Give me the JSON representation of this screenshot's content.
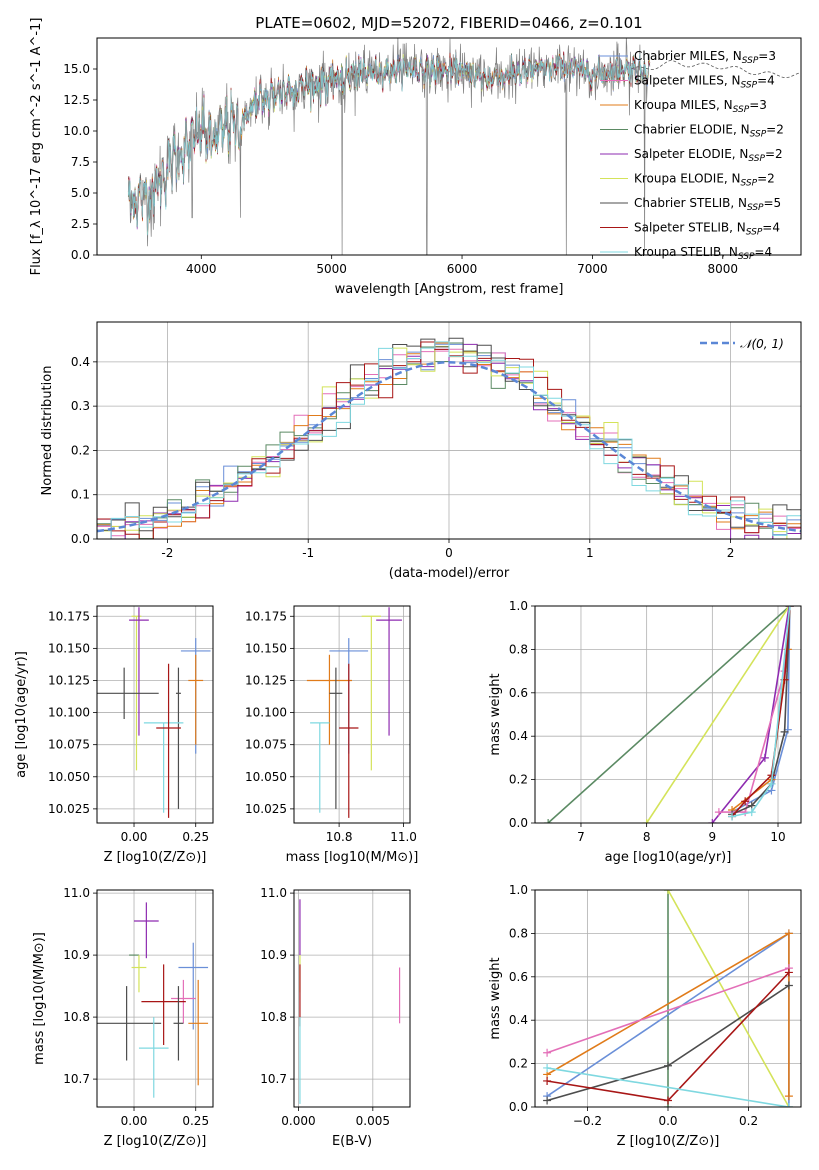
{
  "figure": {
    "title": "PLATE=0602, MJD=52072, FIBERID=0466, z=0.101"
  },
  "models": [
    {
      "name": "Chabrier MILES, N_SSP=3",
      "imf": "Chabrier",
      "lib": "MILES",
      "nssp": "3",
      "color": "#6a8fd8"
    },
    {
      "name": "Salpeter MILES, N_SSP=4",
      "imf": "Salpeter",
      "lib": "MILES",
      "nssp": "4",
      "color": "#e36fb8"
    },
    {
      "name": "Kroupa MILES, N_SSP=3",
      "imf": "Kroupa",
      "lib": "MILES",
      "nssp": "3",
      "color": "#e07b1a"
    },
    {
      "name": "Chabrier ELODIE, N_SSP=2",
      "imf": "Chabrier",
      "lib": "ELODIE",
      "nssp": "2",
      "color": "#5b8a63"
    },
    {
      "name": "Salpeter ELODIE, N_SSP=2",
      "imf": "Salpeter",
      "lib": "ELODIE",
      "nssp": "2",
      "color": "#8e2bb0"
    },
    {
      "name": "Kroupa ELODIE, N_SSP=2",
      "imf": "Kroupa",
      "lib": "ELODIE",
      "nssp": "2",
      "color": "#d4e35a"
    },
    {
      "name": "Chabrier STELIB, N_SSP=5",
      "imf": "Chabrier",
      "lib": "STELIB",
      "nssp": "5",
      "color": "#4d4d4d"
    },
    {
      "name": "Salpeter STELIB, N_SSP=4",
      "imf": "Salpeter",
      "lib": "STELIB",
      "nssp": "4",
      "color": "#a81616"
    },
    {
      "name": "Kroupa STELIB, N_SSP=4",
      "imf": "Kroupa",
      "lib": "STELIB",
      "nssp": "4",
      "color": "#7fd8e0"
    }
  ],
  "chart_data": [
    {
      "id": "spectrum",
      "type": "line",
      "title": "PLATE=0602, MJD=52072, FIBERID=0466, z=0.101",
      "xlabel": "wavelength [Angstrom, rest frame]",
      "ylabel": "Flux [f_λ 10^-17 erg cm^-2 s^-1 A^-1]",
      "xlim": [
        3200,
        8600
      ],
      "ylim": [
        0,
        17.5
      ],
      "xticks": [
        4000,
        5000,
        6000,
        7000,
        8000
      ],
      "yticks": [
        0.0,
        2.5,
        5.0,
        7.5,
        10.0,
        12.5,
        15.0
      ],
      "data_color": "#808080",
      "continuum": {
        "x": [
          3450,
          3600,
          3700,
          3800,
          3900,
          4000,
          4100,
          4200,
          4300,
          4400,
          4600,
          4800,
          5000,
          5200,
          5400,
          5600,
          5800,
          6000,
          6200,
          6400,
          6600,
          6800,
          7000,
          7200,
          7400,
          7600,
          7800,
          8000,
          8200,
          8400
        ],
        "y": [
          4.4,
          4.8,
          6.2,
          7.9,
          8.8,
          10.1,
          9.1,
          10.6,
          10.4,
          12.1,
          13.2,
          13.6,
          14.0,
          14.6,
          14.8,
          15.0,
          14.9,
          14.8,
          14.2,
          14.6,
          15.0,
          15.2,
          14.6,
          14.9,
          15.0,
          15.5,
          15.3,
          15.2,
          14.8,
          14.5
        ]
      }
    },
    {
      "id": "residuals",
      "type": "line",
      "xlabel": "(data-model)/error",
      "ylabel": "Normed distribution",
      "xlim": [
        -2.5,
        2.5
      ],
      "ylim": [
        0,
        0.49
      ],
      "xticks": [
        -2,
        -1,
        0,
        1,
        2
      ],
      "yticks": [
        0.0,
        0.1,
        0.2,
        0.3,
        0.4
      ],
      "reference": {
        "name": "𝒩(0, 1)",
        "mean": 0,
        "sigma": 1,
        "color": "#5b87d6"
      }
    },
    {
      "id": "age_vs_Z",
      "type": "scatter",
      "xlabel": "Z [log10(Z/Z⊙)]",
      "ylabel": "age [log10(age/yr)]",
      "xlim": [
        -0.15,
        0.32
      ],
      "ylim": [
        10.014,
        10.183
      ],
      "xticks": [
        0.0,
        0.25
      ],
      "xticklabels": [
        "0.00",
        "0.25"
      ],
      "yticks": [
        10.025,
        10.05,
        10.075,
        10.1,
        10.125,
        10.15,
        10.175
      ],
      "yticklabels": [
        "10.025",
        "10.050",
        "10.075",
        "10.100",
        "10.125",
        "10.150",
        "10.175"
      ],
      "points": [
        {
          "model": 0,
          "x": 0.25,
          "xerr": 0.06,
          "y": 10.148,
          "yerr": [
            0.08,
            0.01
          ]
        },
        {
          "model": 2,
          "x": 0.25,
          "xerr": 0.03,
          "y": 10.125,
          "yerr": [
            0.05,
            0.02
          ]
        },
        {
          "model": 5,
          "x": 0.01,
          "xerr": 0.02,
          "y": 10.175,
          "yerr": [
            0.12,
            0.0
          ]
        },
        {
          "model": 4,
          "x": 0.02,
          "xerr": 0.04,
          "y": 10.172,
          "yerr": [
            0.09,
            0.01
          ]
        },
        {
          "model": 6,
          "x": -0.04,
          "xerr": 0.14,
          "y": 10.115,
          "yerr": [
            0.02,
            0.02
          ]
        },
        {
          "model": 6,
          "x": 0.18,
          "xerr": 0.01,
          "y": 10.115,
          "yerr": [
            0.09,
            0.02
          ]
        },
        {
          "model": 8,
          "x": 0.12,
          "xerr": 0.08,
          "y": 10.092,
          "yerr": [
            0.07,
            0.0
          ]
        },
        {
          "model": 7,
          "x": 0.14,
          "xerr": 0.05,
          "y": 10.088,
          "yerr": [
            0.07,
            0.05
          ]
        }
      ]
    },
    {
      "id": "age_vs_mass",
      "type": "scatter",
      "xlabel": "mass [log10(M/M⊙)]",
      "ylabel": "",
      "xlim": [
        10.66,
        11.02
      ],
      "ylim": [
        10.014,
        10.183
      ],
      "xticks": [
        10.8,
        11.0
      ],
      "xticklabels": [
        "10.8",
        "11.0"
      ],
      "yticks": [
        10.025,
        10.05,
        10.075,
        10.1,
        10.125,
        10.15,
        10.175
      ],
      "yticklabels": [
        "10.025",
        "10.050",
        "10.075",
        "10.100",
        "10.125",
        "10.150",
        "10.175"
      ],
      "points": [
        {
          "model": 0,
          "x": 10.83,
          "xerr": 0.06,
          "y": 10.148,
          "yerr": [
            0.08,
            0.01
          ]
        },
        {
          "model": 2,
          "x": 10.77,
          "xerr": 0.07,
          "y": 10.125,
          "yerr": [
            0.05,
            0.02
          ]
        },
        {
          "model": 5,
          "x": 10.9,
          "xerr": 0.03,
          "y": 10.175,
          "yerr": [
            0.12,
            0.0
          ]
        },
        {
          "model": 4,
          "x": 10.955,
          "xerr": 0.04,
          "y": 10.172,
          "yerr": [
            0.09,
            0.01
          ]
        },
        {
          "model": 6,
          "x": 10.79,
          "xerr": 0.02,
          "y": 10.115,
          "yerr": [
            0.09,
            0.02
          ]
        },
        {
          "model": 8,
          "x": 10.74,
          "xerr": 0.03,
          "y": 10.092,
          "yerr": [
            0.07,
            0.0
          ]
        },
        {
          "model": 7,
          "x": 10.83,
          "xerr": 0.03,
          "y": 10.088,
          "yerr": [
            0.07,
            0.05
          ]
        }
      ]
    },
    {
      "id": "cum_mass_vs_age",
      "type": "line",
      "xlabel": "age  [log10(age/yr)]",
      "ylabel": "mass weight",
      "xlim": [
        6.3,
        10.35
      ],
      "ylim": [
        0,
        1
      ],
      "xticks": [
        7,
        8,
        9,
        10
      ],
      "yticks": [
        0.0,
        0.2,
        0.4,
        0.6,
        0.8,
        1.0
      ],
      "yticklabels": [
        "0.0",
        "0.2",
        "0.4",
        "0.6",
        "0.8",
        "1.0"
      ],
      "series": [
        {
          "model": 3,
          "x": [
            6.5,
            10.18
          ],
          "y": [
            0.0,
            1.0
          ]
        },
        {
          "model": 5,
          "x": [
            8.0,
            10.17
          ],
          "y": [
            0.0,
            1.0
          ]
        },
        {
          "model": 4,
          "x": [
            9.0,
            9.8,
            10.17
          ],
          "y": [
            0.0,
            0.3,
            1.0
          ]
        },
        {
          "model": 0,
          "x": [
            9.3,
            9.9,
            10.15,
            10.18
          ],
          "y": [
            0.05,
            0.15,
            0.43,
            1.0
          ]
        },
        {
          "model": 2,
          "x": [
            9.3,
            9.9,
            10.15,
            10.18
          ],
          "y": [
            0.06,
            0.2,
            0.8,
            1.0
          ]
        },
        {
          "model": 1,
          "x": [
            9.1,
            9.5,
            10.1,
            10.18
          ],
          "y": [
            0.05,
            0.05,
            0.7,
            1.0
          ]
        },
        {
          "model": 6,
          "x": [
            9.3,
            9.6,
            9.9,
            10.1,
            10.18
          ],
          "y": [
            0.04,
            0.08,
            0.18,
            0.42,
            1.0
          ]
        },
        {
          "model": 7,
          "x": [
            9.3,
            9.5,
            9.9,
            10.1,
            10.18
          ],
          "y": [
            0.03,
            0.1,
            0.22,
            0.66,
            1.0
          ]
        },
        {
          "model": 8,
          "x": [
            9.3,
            9.6,
            9.9,
            10.18
          ],
          "y": [
            0.03,
            0.05,
            0.18,
            1.0
          ]
        }
      ]
    },
    {
      "id": "mass_vs_Z",
      "type": "scatter",
      "xlabel": "Z [log10(Z/Z⊙)]",
      "ylabel": "mass [log10(M/M⊙)]",
      "xlim": [
        -0.15,
        0.32
      ],
      "ylim": [
        10.655,
        11.005
      ],
      "xticks": [
        0.0,
        0.25
      ],
      "xticklabels": [
        "0.00",
        "0.25"
      ],
      "yticks": [
        10.7,
        10.8,
        10.9,
        11.0
      ],
      "yticklabels": [
        "10.7",
        "10.8",
        "10.9",
        "11.0"
      ],
      "points": [
        {
          "model": 0,
          "x": 0.24,
          "xerr": 0.06,
          "y": 10.88,
          "yerr": [
            0.1,
            0.04
          ]
        },
        {
          "model": 2,
          "x": 0.26,
          "xerr": 0.04,
          "y": 10.79,
          "yerr": [
            0.1,
            0.07
          ]
        },
        {
          "model": 4,
          "x": 0.05,
          "xerr": 0.05,
          "y": 10.955,
          "yerr": [
            0.06,
            0.03
          ]
        },
        {
          "model": 3,
          "x": 0.0,
          "xerr": 0.02,
          "y": 10.9,
          "yerr": [
            0.0,
            0.0
          ]
        },
        {
          "model": 5,
          "x": 0.02,
          "xerr": 0.03,
          "y": 10.88,
          "yerr": [
            0.04,
            0.02
          ]
        },
        {
          "model": 1,
          "x": 0.2,
          "xerr": 0.05,
          "y": 10.83,
          "yerr": [
            0.04,
            0.03
          ]
        },
        {
          "model": 7,
          "x": 0.12,
          "xerr": 0.09,
          "y": 10.825,
          "yerr": [
            0.07,
            0.06
          ]
        },
        {
          "model": 6,
          "x": -0.03,
          "xerr": 0.14,
          "y": 10.79,
          "yerr": [
            0.06,
            0.06
          ]
        },
        {
          "model": 6,
          "x": 0.18,
          "xerr": 0.02,
          "y": 10.79,
          "yerr": [
            0.06,
            0.06
          ]
        },
        {
          "model": 8,
          "x": 0.08,
          "xerr": 0.06,
          "y": 10.75,
          "yerr": [
            0.08,
            0.05
          ]
        }
      ]
    },
    {
      "id": "mass_vs_EBV",
      "type": "scatter",
      "xlabel": "E(B-V)",
      "ylabel": "",
      "xlim": [
        -0.0003,
        0.0075
      ],
      "ylim": [
        10.655,
        11.005
      ],
      "xticks": [
        0.0,
        0.005
      ],
      "xticklabels": [
        "0.000",
        "0.005"
      ],
      "yticks": [
        10.7,
        10.8,
        10.9,
        11.0
      ],
      "yticklabels": [
        "10.7",
        "10.8",
        "10.9",
        "11.0"
      ],
      "points": [
        {
          "model": 4,
          "x": 0.0001,
          "xerr": 0,
          "y": 10.95,
          "yerr": [
            0.05,
            0.04
          ]
        },
        {
          "model": 5,
          "x": 0.0001,
          "xerr": 0,
          "y": 10.88,
          "yerr": [
            0.04,
            0.02
          ]
        },
        {
          "model": 7,
          "x": 0.0001,
          "xerr": 0,
          "y": 10.825,
          "yerr": [
            0.04,
            0.06
          ]
        },
        {
          "model": 8,
          "x": 0.0001,
          "xerr": 0,
          "y": 10.75,
          "yerr": [
            0.09,
            0.05
          ]
        },
        {
          "model": 1,
          "x": 0.0068,
          "xerr": 0,
          "y": 10.83,
          "yerr": [
            0.04,
            0.05
          ]
        }
      ]
    },
    {
      "id": "cum_mass_vs_Z",
      "type": "line",
      "xlabel": "Z [log10(Z/Z⊙)]",
      "ylabel": "mass weight",
      "xlim": [
        -0.33,
        0.33
      ],
      "ylim": [
        0,
        1
      ],
      "xticks": [
        -0.2,
        0.0,
        0.2
      ],
      "xticklabels": [
        "−0.2",
        "0.0",
        "0.2"
      ],
      "yticks": [
        0.0,
        0.2,
        0.4,
        0.6,
        0.8,
        1.0
      ],
      "yticklabels": [
        "0.0",
        "0.2",
        "0.4",
        "0.6",
        "0.8",
        "1.0"
      ],
      "series": [
        {
          "model": 3,
          "x": [
            0.0,
            0.0
          ],
          "y": [
            0.0,
            1.0
          ]
        },
        {
          "model": 5,
          "x": [
            0.0,
            0.3
          ],
          "y": [
            1.0,
            0.0
          ]
        },
        {
          "model": 0,
          "x": [
            -0.3,
            0.3,
            0.3
          ],
          "y": [
            0.05,
            0.8,
            0.0
          ]
        },
        {
          "model": 2,
          "x": [
            -0.3,
            0.3,
            0.3
          ],
          "y": [
            0.15,
            0.8,
            0.05
          ]
        },
        {
          "model": 1,
          "x": [
            -0.3,
            0.3
          ],
          "y": [
            0.25,
            0.64
          ]
        },
        {
          "model": 6,
          "x": [
            -0.3,
            0.0,
            0.3
          ],
          "y": [
            0.03,
            0.19,
            0.56
          ]
        },
        {
          "model": 7,
          "x": [
            -0.3,
            0.0,
            0.3
          ],
          "y": [
            0.12,
            0.03,
            0.62
          ]
        },
        {
          "model": 8,
          "x": [
            -0.3,
            0.3
          ],
          "y": [
            0.18,
            0.0
          ]
        }
      ]
    }
  ]
}
